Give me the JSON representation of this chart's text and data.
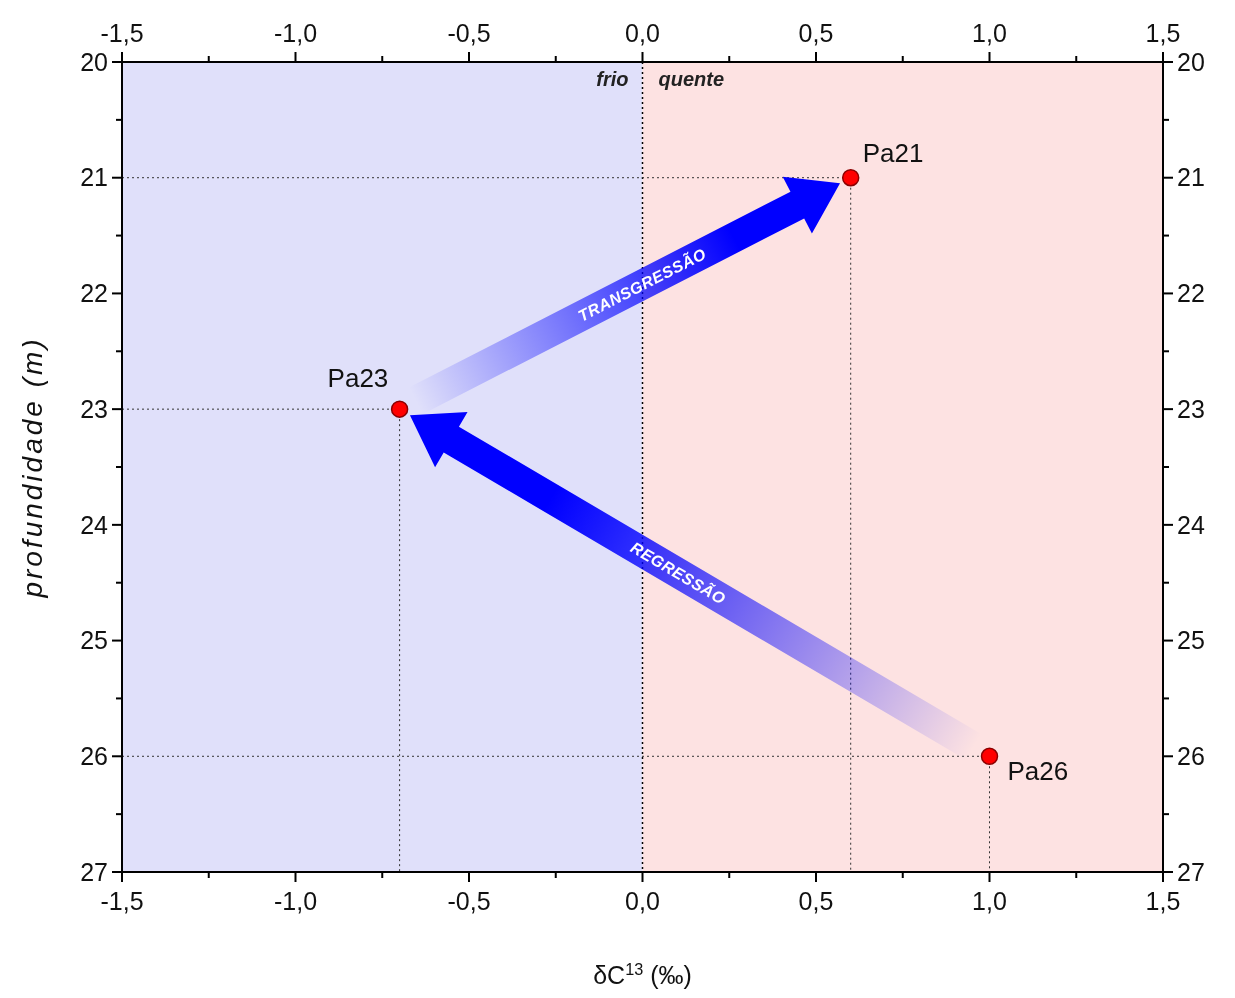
{
  "chart_data": {
    "type": "scatter",
    "xlabel": "δC$^{13}$ (‰)",
    "ylabel": "profundidade (m)",
    "x": [
      1.0,
      -0.7,
      0.6
    ],
    "series": [
      {
        "color": "#ff0000",
        "values": [
          26,
          23,
          21
        ]
      }
    ],
    "marker": "circle",
    "xlim": [
      -1.5,
      1.5
    ],
    "ylim": [
      27,
      20
    ],
    "xticks": [
      {
        "value": -1.5,
        "label": "-1,5"
      },
      {
        "value": -1.25,
        "label": null
      },
      {
        "value": -1.0,
        "label": "-1,0"
      },
      {
        "value": -0.75,
        "label": null
      },
      {
        "value": -0.5,
        "label": "-0,5"
      },
      {
        "value": -0.25,
        "label": null
      },
      {
        "value": 0,
        "label": "0,0"
      },
      {
        "value": 0.25,
        "label": null
      },
      {
        "value": 0.5,
        "label": "0,5"
      },
      {
        "value": 0.75,
        "label": null
      },
      {
        "value": 1.0,
        "label": "1,0"
      },
      {
        "value": 1.25,
        "label": null
      },
      {
        "value": 1.5,
        "label": "1,5"
      }
    ],
    "x2lim": [
      -1.5,
      1.5
    ],
    "x2ticks": [
      {
        "value": -1.5,
        "label": "-1,5"
      },
      {
        "value": -1.25,
        "label": null
      },
      {
        "value": -1.0,
        "label": "-1,0"
      },
      {
        "value": -0.75,
        "label": null
      },
      {
        "value": -0.5,
        "label": "-0,5"
      },
      {
        "value": -0.25,
        "label": null
      },
      {
        "value": 0,
        "label": "0,0"
      },
      {
        "value": 0.25,
        "label": null
      },
      {
        "value": 0.5,
        "label": "0,5"
      },
      {
        "value": 0.75,
        "label": null
      },
      {
        "value": 1.0,
        "label": "1,0"
      },
      {
        "value": 1.25,
        "label": null
      },
      {
        "value": 1.5,
        "label": "1,5"
      }
    ],
    "yticks": [
      20,
      {
        "value": 20.5,
        "label": null
      },
      21,
      {
        "value": 21.5,
        "label": null
      },
      22,
      {
        "value": 22.5,
        "label": null
      },
      23,
      {
        "value": 23.5,
        "label": null
      },
      24,
      {
        "value": 24.5,
        "label": null
      },
      25,
      {
        "value": 25.5,
        "label": null
      },
      26,
      {
        "value": 26.5,
        "label": null
      },
      27
    ],
    "y2lim": [
      27,
      20
    ],
    "y2ticks": [
      20,
      {
        "value": 20.5,
        "label": null
      },
      21,
      {
        "value": 21.5,
        "label": null
      },
      22,
      {
        "value": 22.5,
        "label": null
      },
      23,
      {
        "value": 23.5,
        "label": null
      },
      24,
      {
        "value": 24.5,
        "label": null
      },
      25,
      {
        "value": 25.5,
        "label": null
      },
      26,
      {
        "value": 26.5,
        "label": null
      },
      27
    ],
    "bands": [
      {
        "axis": "x",
        "from": -1.5,
        "to": 0,
        "label": "frio",
        "color": "#e0e0fa"
      },
      {
        "axis": "x",
        "from": 0,
        "to": 1.5,
        "label": "quente",
        "color": "#fde2e2"
      }
    ],
    "ref_lines": [
      {
        "axis": "x",
        "value": 0,
        "line_style": "dotted",
        "color": "#000000"
      }
    ],
    "annotations": [
      {
        "text": "Pa26",
        "x": 1.0,
        "y": 26
      },
      {
        "text": "Pa23",
        "x": -0.7,
        "y": 23
      },
      {
        "text": "Pa21",
        "x": 0.6,
        "y": 21
      },
      "REGRESSÃO",
      "TRANSGRESSÃO"
    ]
  }
}
